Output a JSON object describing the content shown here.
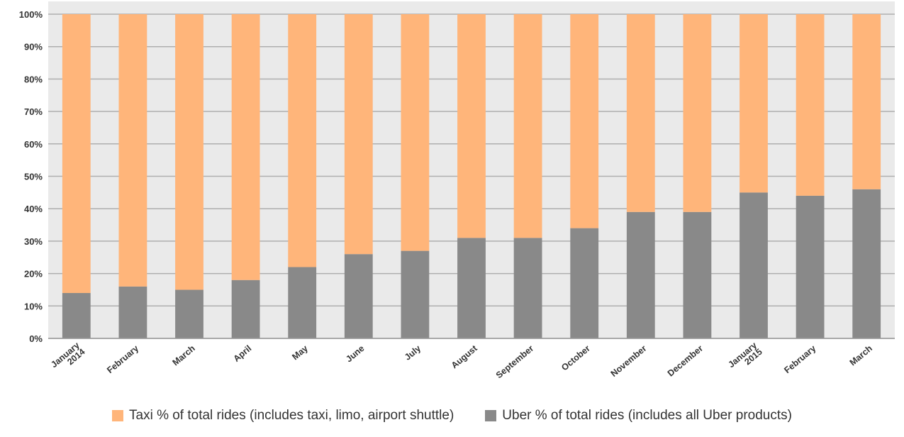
{
  "chart_data": {
    "type": "bar",
    "stacked": true,
    "categories": [
      "January 2014",
      "February",
      "March",
      "April",
      "May",
      "June",
      "July",
      "August",
      "September",
      "October",
      "November",
      "December",
      "January 2015",
      "February",
      "March"
    ],
    "series": [
      {
        "name": "Uber % of total rides (includes all Uber products)",
        "color": "#898989",
        "values": [
          14,
          16,
          15,
          18,
          22,
          26,
          27,
          31,
          31,
          34,
          39,
          39,
          45,
          44,
          46
        ]
      },
      {
        "name": "Taxi % of total rides (includes taxi, limo, airport shuttle)",
        "color": "#FFB57A",
        "values": [
          86,
          84,
          85,
          82,
          78,
          74,
          73,
          69,
          69,
          66,
          61,
          61,
          55,
          56,
          54
        ]
      }
    ],
    "yticks": [
      "0%",
      "10%",
      "20%",
      "30%",
      "40%",
      "50%",
      "60%",
      "70%",
      "80%",
      "90%",
      "100%"
    ],
    "ylim": [
      0,
      100
    ],
    "grid": true,
    "legend_position": "bottom",
    "legend_order": [
      "Taxi % of total rides (includes taxi, limo, airport shuttle)",
      "Uber % of total rides (includes all Uber products)"
    ],
    "plot_background": "#EAEAEA",
    "grid_color": "#AFAFAF"
  }
}
